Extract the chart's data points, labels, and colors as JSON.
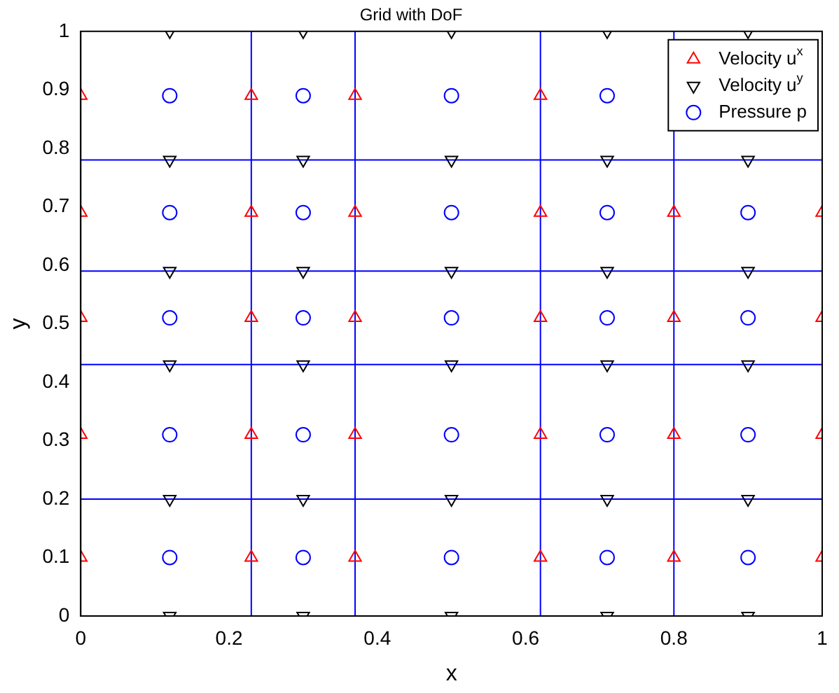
{
  "chart_data": {
    "type": "scatter",
    "title": "Grid with DoF",
    "xlabel": "x",
    "ylabel": "y",
    "xlim": [
      0,
      1
    ],
    "xticks": [
      0,
      0.2,
      0.4,
      0.6,
      0.8,
      1
    ],
    "ylim": [
      0,
      1
    ],
    "yticks": [
      0,
      0.1,
      0.2,
      0.3,
      0.4,
      0.5,
      0.6,
      0.7,
      0.8,
      0.9,
      1
    ],
    "grid": false,
    "legend": "top right",
    "series": [
      {
        "name": "Velocity u$^{x}$",
        "color": "#ff0000",
        "marker": "triangle",
        "x": [
          0,
          0.23,
          0.37,
          0.62,
          0.8,
          1,
          0,
          0.23,
          0.37,
          0.62,
          0.8,
          1,
          0,
          0.23,
          0.37,
          0.62,
          0.8,
          1,
          0,
          0.23,
          0.37,
          0.62,
          0.8,
          1,
          0,
          0.23,
          0.37,
          0.62
        ],
        "values": [
          0.1,
          0.1,
          0.1,
          0.1,
          0.1,
          0.1,
          0.31,
          0.31,
          0.31,
          0.31,
          0.31,
          0.31,
          0.51,
          0.51,
          0.51,
          0.51,
          0.51,
          0.51,
          0.69,
          0.69,
          0.69,
          0.69,
          0.69,
          0.69,
          0.89,
          0.89,
          0.89,
          0.89
        ]
      },
      {
        "name": "Velocity u$^{y}$",
        "color": "#000000",
        "marker": "triangle_down",
        "x": [
          0.12,
          0.3,
          0.5,
          0.71,
          0.9,
          0.12,
          0.3,
          0.5,
          0.71,
          0.9,
          0.12,
          0.3,
          0.5,
          0.71,
          0.9,
          0.12,
          0.3,
          0.5,
          0.71,
          0.9,
          0.12,
          0.3,
          0.5,
          0.71,
          0.9,
          0.12,
          0.3,
          0.5,
          0.71,
          0.9
        ],
        "values": [
          0,
          0,
          0,
          0,
          0,
          0.2,
          0.2,
          0.2,
          0.2,
          0.2,
          0.43,
          0.43,
          0.43,
          0.43,
          0.43,
          0.59,
          0.59,
          0.59,
          0.59,
          0.59,
          0.78,
          0.78,
          0.78,
          0.78,
          0.78,
          1,
          1,
          1,
          1,
          1
        ]
      },
      {
        "name": "Pressure p",
        "color": "#0000ff",
        "marker": "circle",
        "x": [
          0.12,
          0.3,
          0.5,
          0.71,
          0.9,
          0.12,
          0.3,
          0.5,
          0.71,
          0.9,
          0.12,
          0.3,
          0.5,
          0.71,
          0.9,
          0.12,
          0.3,
          0.5,
          0.71,
          0.9,
          0.12,
          0.3,
          0.5,
          0.71
        ],
        "values": [
          0.1,
          0.1,
          0.1,
          0.1,
          0.1,
          0.31,
          0.31,
          0.31,
          0.31,
          0.31,
          0.51,
          0.51,
          0.51,
          0.51,
          0.51,
          0.69,
          0.69,
          0.69,
          0.69,
          0.69,
          0.89,
          0.89,
          0.89,
          0.89
        ]
      }
    ],
    "ref_lines": [
      {
        "axis": "x",
        "value": 0.23,
        "color": "#0000ff"
      },
      {
        "axis": "x",
        "value": 0.37,
        "color": "#0000ff"
      },
      {
        "axis": "x",
        "value": 0.62,
        "color": "#0000ff"
      },
      {
        "axis": "x",
        "value": 0.8,
        "color": "#0000ff"
      },
      {
        "axis": "y",
        "value": 0.2,
        "color": "#0000ff"
      },
      {
        "axis": "y",
        "value": 0.43,
        "color": "#0000ff"
      },
      {
        "axis": "y",
        "value": 0.59,
        "color": "#0000ff"
      },
      {
        "axis": "y",
        "value": 0.78,
        "color": "#0000ff"
      }
    ]
  }
}
